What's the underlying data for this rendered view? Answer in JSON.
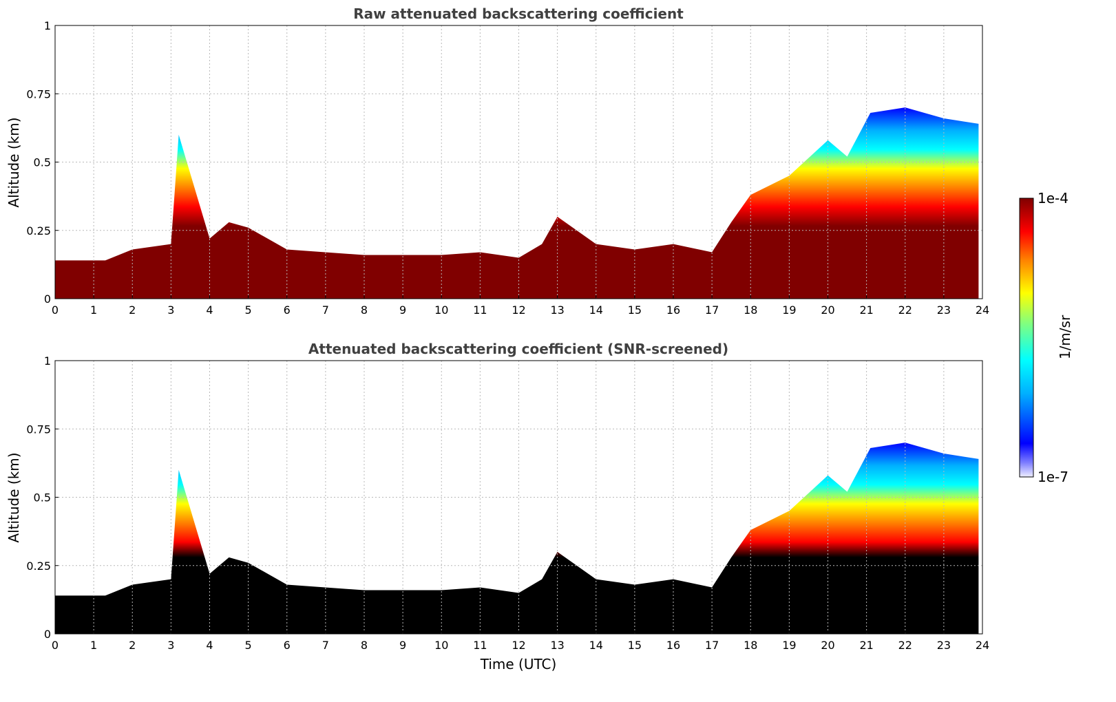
{
  "chart_data": [
    {
      "type": "heatmap",
      "title": "Raw attenuated backscattering coefficient",
      "xlabel": "",
      "ylabel": "Altitude (km)",
      "xlim": [
        0,
        24
      ],
      "ylim": [
        0,
        1
      ],
      "x_ticks": [
        "0",
        "1",
        "2",
        "3",
        "4",
        "5",
        "6",
        "7",
        "8",
        "9",
        "10",
        "11",
        "12",
        "13",
        "14",
        "15",
        "16",
        "17",
        "18",
        "19",
        "20",
        "21",
        "22",
        "23",
        "24"
      ],
      "y_ticks": [
        "0",
        "0.25",
        "0.5",
        "0.75",
        "1"
      ],
      "grid": true,
      "screened": false,
      "layer_top_km": {
        "time_utc": [
          0,
          1.3,
          2.0,
          3.0,
          3.2,
          4.0,
          4.5,
          5.0,
          6.0,
          8.0,
          10.0,
          11.0,
          12.0,
          12.6,
          13.0,
          14.0,
          15.0,
          16.0,
          17.0,
          17.5,
          18.0,
          19.0,
          20.0,
          20.5,
          21.1,
          22.0,
          23.0,
          23.9
        ],
        "altitude": [
          0.14,
          0.14,
          0.18,
          0.2,
          0.6,
          0.22,
          0.28,
          0.26,
          0.18,
          0.16,
          0.16,
          0.17,
          0.15,
          0.2,
          0.3,
          0.2,
          0.18,
          0.2,
          0.17,
          0.28,
          0.38,
          0.45,
          0.58,
          0.52,
          0.68,
          0.7,
          0.66,
          0.64
        ]
      }
    },
    {
      "type": "heatmap",
      "title": "Attenuated backscattering coefficient (SNR-screened)",
      "xlabel": "Time (UTC)",
      "ylabel": "Altitude (km)",
      "xlim": [
        0,
        24
      ],
      "ylim": [
        0,
        1
      ],
      "x_ticks": [
        "0",
        "1",
        "2",
        "3",
        "4",
        "5",
        "6",
        "7",
        "8",
        "9",
        "10",
        "11",
        "12",
        "13",
        "14",
        "15",
        "16",
        "17",
        "18",
        "19",
        "20",
        "21",
        "22",
        "23",
        "24"
      ],
      "y_ticks": [
        "0",
        "0.25",
        "0.5",
        "0.75",
        "1"
      ],
      "grid": true,
      "screened": true,
      "layer_top_km": {
        "time_utc": [
          0,
          1.3,
          2.0,
          3.0,
          3.2,
          4.0,
          4.5,
          5.0,
          6.0,
          8.0,
          10.0,
          11.0,
          12.0,
          12.6,
          13.0,
          14.0,
          15.0,
          16.0,
          17.0,
          17.5,
          18.0,
          19.0,
          20.0,
          20.5,
          21.1,
          22.0,
          23.0,
          23.9
        ],
        "altitude": [
          0.14,
          0.14,
          0.18,
          0.2,
          0.6,
          0.22,
          0.28,
          0.26,
          0.18,
          0.16,
          0.16,
          0.17,
          0.15,
          0.2,
          0.3,
          0.2,
          0.18,
          0.2,
          0.17,
          0.28,
          0.38,
          0.45,
          0.58,
          0.52,
          0.68,
          0.7,
          0.66,
          0.64
        ]
      }
    }
  ],
  "colorbar": {
    "label": "1/m/sr",
    "max_label": "1e-4",
    "min_label": "1e-7",
    "colormap": [
      "#e8e8ff",
      "#0000ff",
      "#00a0ff",
      "#00ffff",
      "#80ff80",
      "#ffff00",
      "#ff8000",
      "#ff0000",
      "#800000"
    ]
  }
}
